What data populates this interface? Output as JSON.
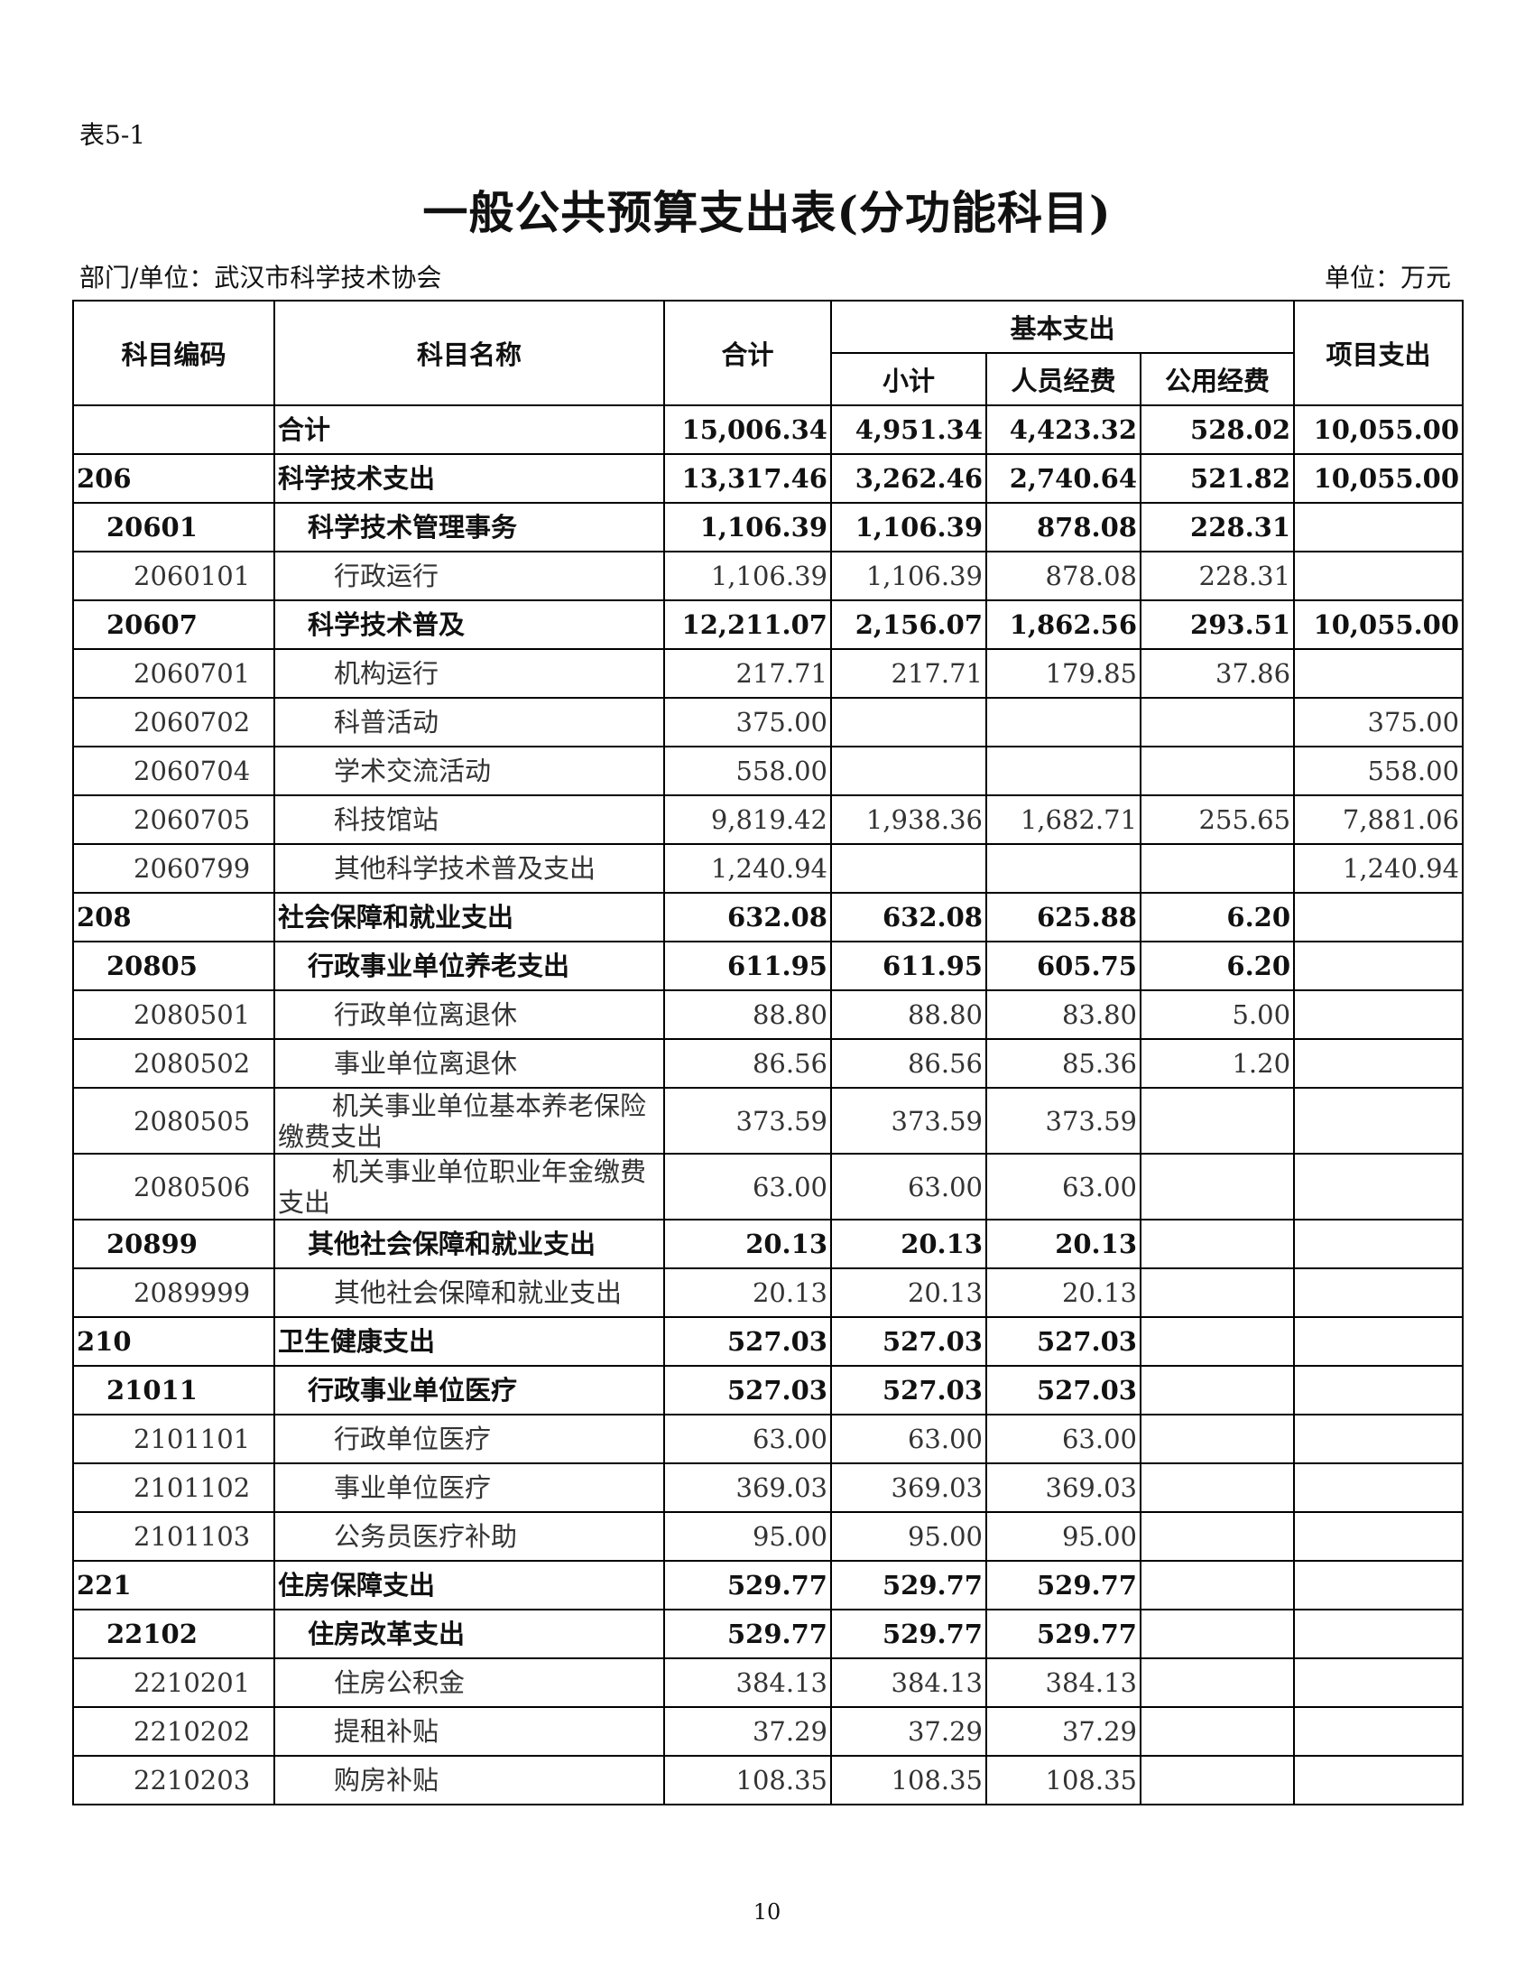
{
  "table_id": "表5-1",
  "title": "一般公共预算支出表(分功能科目)",
  "department": "部门/单位：武汉市科学技术协会",
  "unit": "单位：万元",
  "page_number": "10",
  "headers": {
    "code": "科目编码",
    "name": "科目名称",
    "total": "合计",
    "basic": "基本支出",
    "subtotal": "小计",
    "personnel": "人员经费",
    "public": "公用经费",
    "project": "项目支出"
  },
  "rows": [
    {
      "level": 0,
      "code": "",
      "name": "合计",
      "total": "15,006.34",
      "subtotal": "4,951.34",
      "personnel": "4,423.32",
      "public": "528.02",
      "project": "10,055.00"
    },
    {
      "level": 1,
      "code": "206",
      "name": "科学技术支出",
      "total": "13,317.46",
      "subtotal": "3,262.46",
      "personnel": "2,740.64",
      "public": "521.82",
      "project": "10,055.00"
    },
    {
      "level": 2,
      "code": "20601",
      "name": "科学技术管理事务",
      "total": "1,106.39",
      "subtotal": "1,106.39",
      "personnel": "878.08",
      "public": "228.31",
      "project": ""
    },
    {
      "level": 3,
      "code": "2060101",
      "name": "行政运行",
      "total": "1,106.39",
      "subtotal": "1,106.39",
      "personnel": "878.08",
      "public": "228.31",
      "project": ""
    },
    {
      "level": 2,
      "code": "20607",
      "name": "科学技术普及",
      "total": "12,211.07",
      "subtotal": "2,156.07",
      "personnel": "1,862.56",
      "public": "293.51",
      "project": "10,055.00"
    },
    {
      "level": 3,
      "code": "2060701",
      "name": "机构运行",
      "total": "217.71",
      "subtotal": "217.71",
      "personnel": "179.85",
      "public": "37.86",
      "project": ""
    },
    {
      "level": 3,
      "code": "2060702",
      "name": "科普活动",
      "total": "375.00",
      "subtotal": "",
      "personnel": "",
      "public": "",
      "project": "375.00"
    },
    {
      "level": 3,
      "code": "2060704",
      "name": "学术交流活动",
      "total": "558.00",
      "subtotal": "",
      "personnel": "",
      "public": "",
      "project": "558.00"
    },
    {
      "level": 3,
      "code": "2060705",
      "name": "科技馆站",
      "total": "9,819.42",
      "subtotal": "1,938.36",
      "personnel": "1,682.71",
      "public": "255.65",
      "project": "7,881.06"
    },
    {
      "level": 3,
      "code": "2060799",
      "name": "其他科学技术普及支出",
      "total": "1,240.94",
      "subtotal": "",
      "personnel": "",
      "public": "",
      "project": "1,240.94"
    },
    {
      "level": 1,
      "code": "208",
      "name": "社会保障和就业支出",
      "total": "632.08",
      "subtotal": "632.08",
      "personnel": "625.88",
      "public": "6.20",
      "project": ""
    },
    {
      "level": 2,
      "code": "20805",
      "name": "行政事业单位养老支出",
      "total": "611.95",
      "subtotal": "611.95",
      "personnel": "605.75",
      "public": "6.20",
      "project": ""
    },
    {
      "level": 3,
      "code": "2080501",
      "name": "行政单位离退休",
      "total": "88.80",
      "subtotal": "88.80",
      "personnel": "83.80",
      "public": "5.00",
      "project": ""
    },
    {
      "level": 3,
      "code": "2080502",
      "name": "事业单位离退休",
      "total": "86.56",
      "subtotal": "86.56",
      "personnel": "85.36",
      "public": "1.20",
      "project": ""
    },
    {
      "level": 3,
      "code": "2080505",
      "name": "机关事业单位基本养老保险缴费支出",
      "total": "373.59",
      "subtotal": "373.59",
      "personnel": "373.59",
      "public": "",
      "project": "",
      "tall": true
    },
    {
      "level": 3,
      "code": "2080506",
      "name": "机关事业单位职业年金缴费支出",
      "total": "63.00",
      "subtotal": "63.00",
      "personnel": "63.00",
      "public": "",
      "project": "",
      "tall": true
    },
    {
      "level": 2,
      "code": "20899",
      "name": "其他社会保障和就业支出",
      "total": "20.13",
      "subtotal": "20.13",
      "personnel": "20.13",
      "public": "",
      "project": ""
    },
    {
      "level": 3,
      "code": "2089999",
      "name": "其他社会保障和就业支出",
      "total": "20.13",
      "subtotal": "20.13",
      "personnel": "20.13",
      "public": "",
      "project": ""
    },
    {
      "level": 1,
      "code": "210",
      "name": "卫生健康支出",
      "total": "527.03",
      "subtotal": "527.03",
      "personnel": "527.03",
      "public": "",
      "project": ""
    },
    {
      "level": 2,
      "code": "21011",
      "name": "行政事业单位医疗",
      "total": "527.03",
      "subtotal": "527.03",
      "personnel": "527.03",
      "public": "",
      "project": ""
    },
    {
      "level": 3,
      "code": "2101101",
      "name": "行政单位医疗",
      "total": "63.00",
      "subtotal": "63.00",
      "personnel": "63.00",
      "public": "",
      "project": ""
    },
    {
      "level": 3,
      "code": "2101102",
      "name": "事业单位医疗",
      "total": "369.03",
      "subtotal": "369.03",
      "personnel": "369.03",
      "public": "",
      "project": ""
    },
    {
      "level": 3,
      "code": "2101103",
      "name": "公务员医疗补助",
      "total": "95.00",
      "subtotal": "95.00",
      "personnel": "95.00",
      "public": "",
      "project": ""
    },
    {
      "level": 1,
      "code": "221",
      "name": "住房保障支出",
      "total": "529.77",
      "subtotal": "529.77",
      "personnel": "529.77",
      "public": "",
      "project": ""
    },
    {
      "level": 2,
      "code": "22102",
      "name": "住房改革支出",
      "total": "529.77",
      "subtotal": "529.77",
      "personnel": "529.77",
      "public": "",
      "project": ""
    },
    {
      "level": 3,
      "code": "2210201",
      "name": "住房公积金",
      "total": "384.13",
      "subtotal": "384.13",
      "personnel": "384.13",
      "public": "",
      "project": ""
    },
    {
      "level": 3,
      "code": "2210202",
      "name": "提租补贴",
      "total": "37.29",
      "subtotal": "37.29",
      "personnel": "37.29",
      "public": "",
      "project": ""
    },
    {
      "level": 3,
      "code": "2210203",
      "name": "购房补贴",
      "total": "108.35",
      "subtotal": "108.35",
      "personnel": "108.35",
      "public": "",
      "project": ""
    }
  ]
}
